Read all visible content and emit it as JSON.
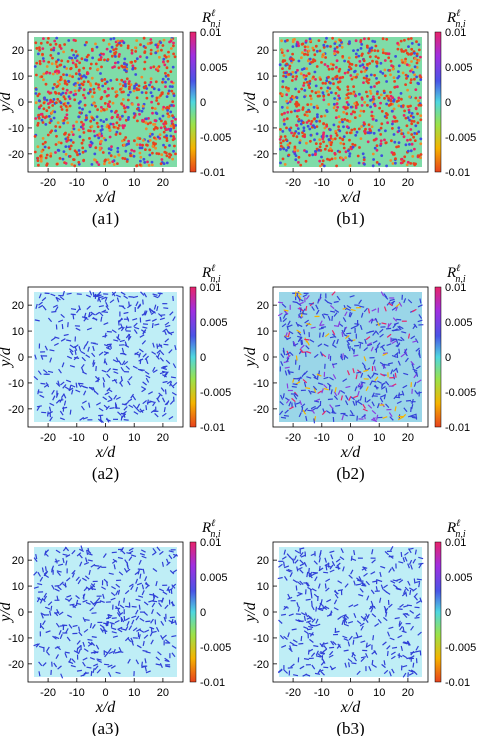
{
  "figure": {
    "panels": [
      {
        "id": "a1",
        "caption": "(a1)",
        "xlabel": "x/d",
        "ylabel": "y/d",
        "colorbar_label": "R",
        "colorbar_sup": "ℓ",
        "colorbar_sub": "n,i",
        "xticks": [
          "-20",
          "-10",
          "0",
          "10",
          "20"
        ],
        "yticks": [
          "20",
          "10",
          "0",
          "-10",
          "-20"
        ],
        "cbticks": [
          "0.01",
          "0.005",
          "0",
          "-0.005",
          "-0.01"
        ]
      },
      {
        "id": "b1",
        "caption": "(b1)",
        "xlabel": "x/d",
        "ylabel": "y/d",
        "colorbar_label": "R",
        "colorbar_sup": "ℓ",
        "colorbar_sub": "n,i",
        "xticks": [
          "-20",
          "-10",
          "0",
          "10",
          "20"
        ],
        "yticks": [
          "20",
          "10",
          "0",
          "-10",
          "-20"
        ],
        "cbticks": [
          "0.01",
          "0.005",
          "0",
          "-0.005",
          "-0.01"
        ]
      },
      {
        "id": "a2",
        "caption": "(a2)",
        "xlabel": "x/d",
        "ylabel": "y/d",
        "colorbar_label": "R",
        "colorbar_sup": "ℓ",
        "colorbar_sub": "n,i",
        "xticks": [
          "-20",
          "-10",
          "0",
          "10",
          "20"
        ],
        "yticks": [
          "20",
          "10",
          "0",
          "-10",
          "-20"
        ],
        "cbticks": [
          "0.01",
          "0.005",
          "0",
          "-0.005",
          "-0.01"
        ]
      },
      {
        "id": "b2",
        "caption": "(b2)",
        "xlabel": "x/d",
        "ylabel": "y/d",
        "colorbar_label": "R",
        "colorbar_sup": "ℓ",
        "colorbar_sub": "n,i",
        "xticks": [
          "-20",
          "-10",
          "0",
          "10",
          "20"
        ],
        "yticks": [
          "20",
          "10",
          "0",
          "-10",
          "-20"
        ],
        "cbticks": [
          "0.01",
          "0.005",
          "0",
          "-0.005",
          "-0.01"
        ]
      },
      {
        "id": "a3",
        "caption": "(a3)",
        "xlabel": "x/d",
        "ylabel": "y/d",
        "colorbar_label": "R",
        "colorbar_sup": "ℓ",
        "colorbar_sub": "n,i",
        "xticks": [
          "-20",
          "-10",
          "0",
          "10",
          "20"
        ],
        "yticks": [
          "20",
          "10",
          "0",
          "-10",
          "-20"
        ],
        "cbticks": [
          "0.01",
          "0.005",
          "0",
          "-0.005",
          "-0.01"
        ]
      },
      {
        "id": "b3",
        "caption": "(b3)",
        "xlabel": "x/d",
        "ylabel": "y/d",
        "colorbar_label": "R",
        "colorbar_sup": "ℓ",
        "colorbar_sub": "n,i",
        "xticks": [
          "-20",
          "-10",
          "0",
          "10",
          "20"
        ],
        "yticks": [
          "20",
          "10",
          "0",
          "-10",
          "-20"
        ],
        "cbticks": [
          "0.01",
          "0.005",
          "0",
          "-0.005",
          "-0.01"
        ]
      }
    ]
  },
  "chart_data": [
    {
      "panel": "a1",
      "type": "heatmap",
      "title": "",
      "xlabel": "x/d",
      "ylabel": "y/d",
      "xlim": [
        -27,
        27
      ],
      "ylim": [
        -27,
        27
      ],
      "colorbar_range": [
        -0.01,
        0.01
      ],
      "colormap": [
        "#e8421e",
        "#f5b400",
        "#9be24a",
        "#4fd7e0",
        "#4a55e6",
        "#a030e0",
        "#e8246a"
      ],
      "description_values": "mixed red and blue particles over green/cyan background"
    },
    {
      "panel": "b1",
      "type": "heatmap",
      "title": "",
      "xlabel": "x/d",
      "ylabel": "y/d",
      "xlim": [
        -27,
        27
      ],
      "ylim": [
        -27,
        27
      ],
      "colorbar_range": [
        -0.01,
        0.01
      ],
      "colormap": [
        "#e8421e",
        "#f5b400",
        "#9be24a",
        "#4fd7e0",
        "#4a55e6",
        "#a030e0",
        "#e8246a"
      ]
    },
    {
      "panel": "a2",
      "type": "heatmap",
      "title": "",
      "xlabel": "x/d",
      "ylabel": "y/d",
      "xlim": [
        -27,
        27
      ],
      "ylim": [
        -27,
        27
      ],
      "colorbar_range": [
        -0.01,
        0.01
      ],
      "colormap": [
        "#e8421e",
        "#f5b400",
        "#9be24a",
        "#4fd7e0",
        "#4a55e6",
        "#a030e0",
        "#e8246a"
      ]
    },
    {
      "panel": "b2",
      "type": "heatmap",
      "title": "",
      "xlabel": "x/d",
      "ylabel": "y/d",
      "xlim": [
        -27,
        27
      ],
      "ylim": [
        -27,
        27
      ],
      "colorbar_range": [
        -0.01,
        0.01
      ],
      "colormap": [
        "#e8421e",
        "#f5b400",
        "#9be24a",
        "#4fd7e0",
        "#4a55e6",
        "#a030e0",
        "#e8246a"
      ]
    },
    {
      "panel": "a3",
      "type": "heatmap",
      "title": "",
      "xlabel": "x/d",
      "ylabel": "y/d",
      "xlim": [
        -27,
        27
      ],
      "ylim": [
        -27,
        27
      ],
      "colorbar_range": [
        -0.01,
        0.01
      ],
      "colormap": [
        "#e8421e",
        "#f5b400",
        "#9be24a",
        "#4fd7e0",
        "#4a55e6",
        "#a030e0",
        "#e8246a"
      ]
    },
    {
      "panel": "b3",
      "type": "heatmap",
      "title": "",
      "xlabel": "x/d",
      "ylabel": "y/d",
      "xlim": [
        -27,
        27
      ],
      "ylim": [
        -27,
        27
      ],
      "colorbar_range": [
        -0.01,
        0.01
      ],
      "colormap": [
        "#e8421e",
        "#f5b400",
        "#9be24a",
        "#4fd7e0",
        "#4a55e6",
        "#a030e0",
        "#e8246a"
      ]
    }
  ]
}
